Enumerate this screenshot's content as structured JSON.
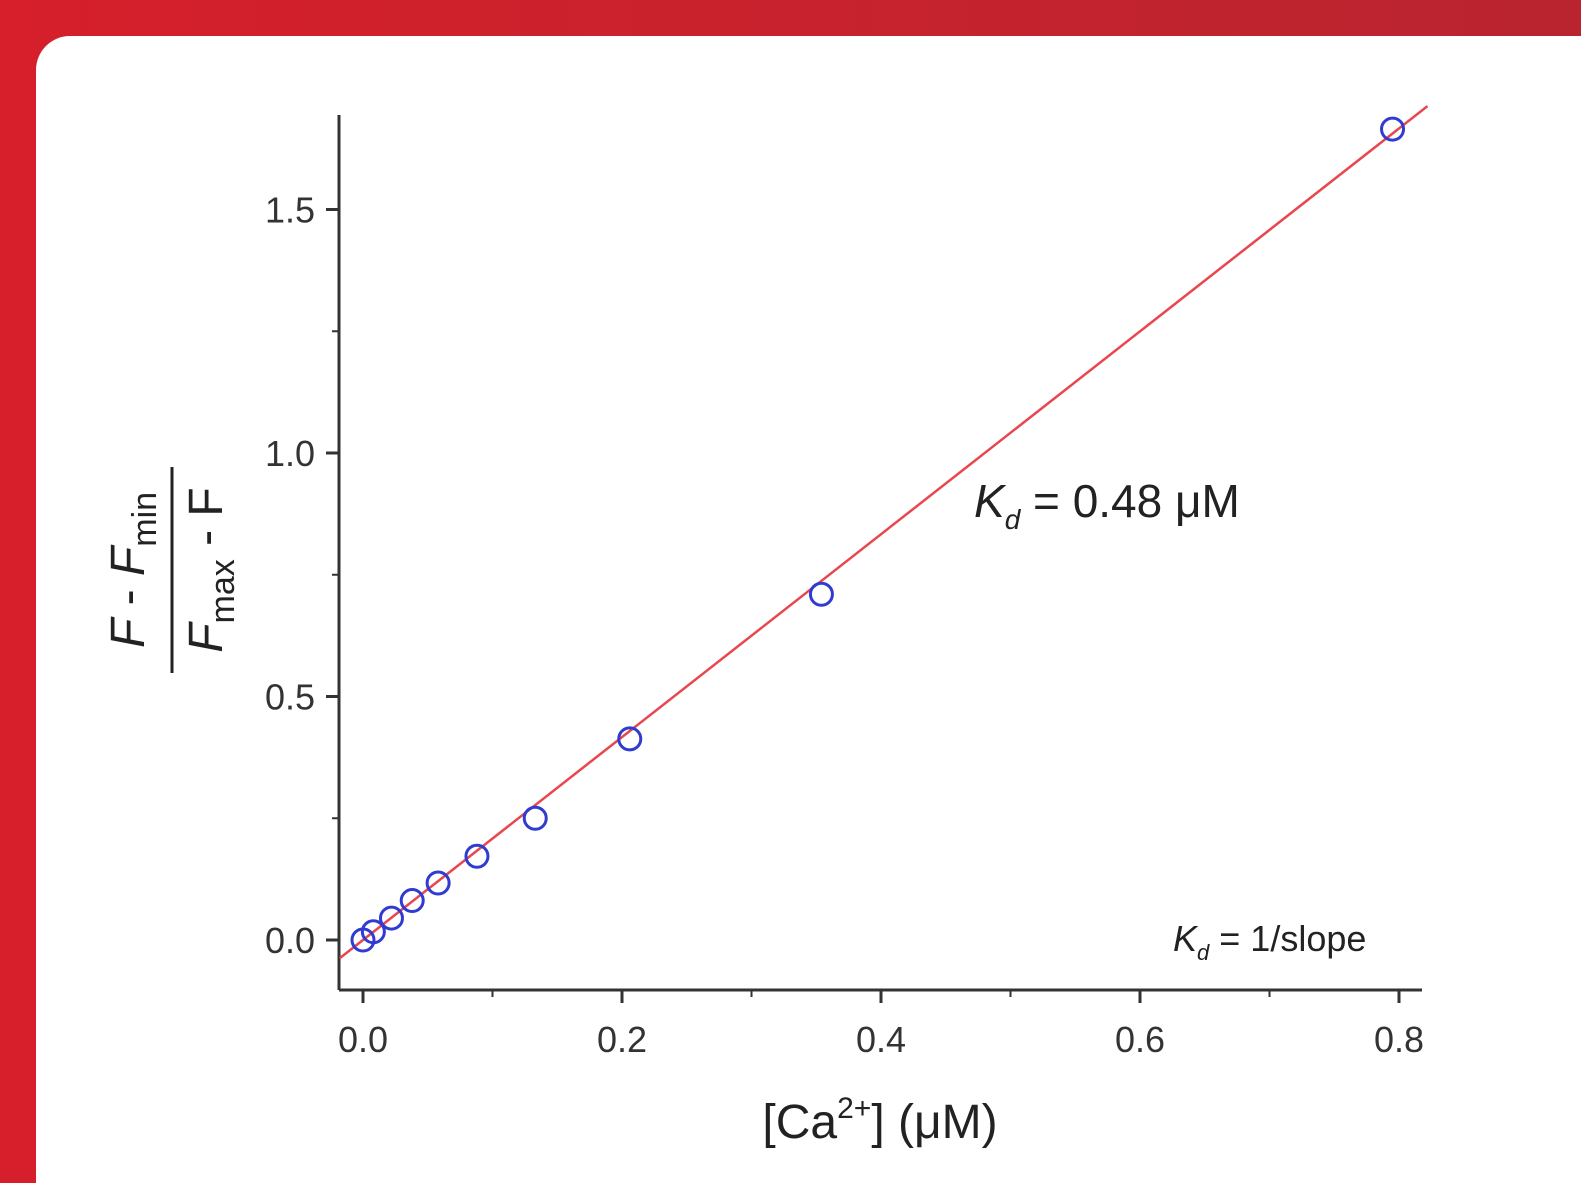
{
  "colors": {
    "frame": "#c8202a",
    "fit_line": "#e8474f",
    "marker": "#2f3bd1",
    "axis": "#333333"
  },
  "chart_data": {
    "type": "scatter",
    "x": [
      0.0,
      0.008,
      0.022,
      0.038,
      0.058,
      0.088,
      0.133,
      0.206,
      0.354,
      0.795
    ],
    "series": [
      {
        "values": [
          0.0,
          0.017,
          0.045,
          0.081,
          0.117,
          0.172,
          0.25,
          0.413,
          0.71,
          1.665
        ],
        "marker": "open-circle",
        "color": "#2f3bd1"
      }
    ],
    "fit_line": {
      "slope": 2.083,
      "intercept": 0.0,
      "color": "#e8474f"
    },
    "xlim": [
      -0.02,
      0.82
    ],
    "ylim": [
      -0.1,
      1.7
    ],
    "xticks": [
      "0.0",
      "0.2",
      "0.4",
      "0.6",
      "0.8"
    ],
    "yticks": [
      "0.0",
      "0.5",
      "1.0",
      "1.5"
    ],
    "xlabel": {
      "prefix": "[Ca",
      "sup": "2+",
      "suffix": "] (μM)"
    },
    "ylabel": {
      "num_F": "F",
      "num_minus": " - ",
      "num_F2": "F",
      "num_sub": "min",
      "den_F": "F",
      "den_sub": "max",
      "den_rest": " - F"
    },
    "annotations": {
      "kd_value": {
        "K": "K",
        "sub": "d",
        "text": " = 0.48 μM"
      },
      "kd_formula": {
        "K": "K",
        "sub": "d",
        "text": " = 1/slope"
      }
    },
    "grid": false,
    "legend": "none"
  }
}
